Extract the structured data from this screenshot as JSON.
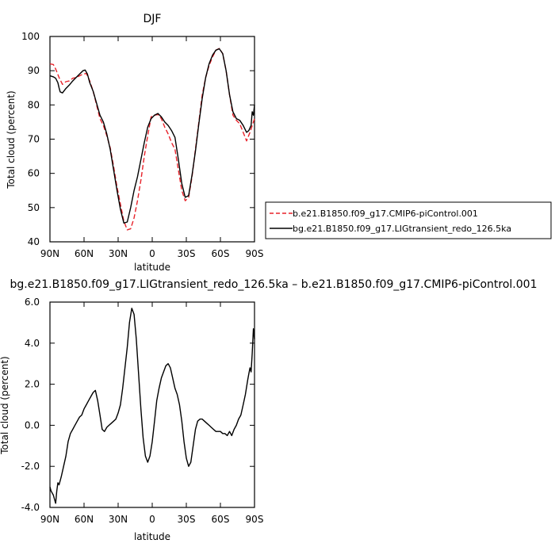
{
  "chart_data": [
    {
      "type": "line",
      "title": "DJF",
      "xlabel": "latitude",
      "ylabel": "Total cloud (percent)",
      "xlim": [
        90,
        -90
      ],
      "ylim": [
        40,
        100
      ],
      "x_ticks": [
        {
          "value": 90,
          "label": "90N"
        },
        {
          "value": 60,
          "label": "60N"
        },
        {
          "value": 30,
          "label": "30N"
        },
        {
          "value": 0,
          "label": "0"
        },
        {
          "value": -30,
          "label": "30S"
        },
        {
          "value": -60,
          "label": "60S"
        },
        {
          "value": -90,
          "label": "90S"
        }
      ],
      "y_ticks": [
        {
          "value": 40,
          "label": "40"
        },
        {
          "value": 50,
          "label": "50"
        },
        {
          "value": 60,
          "label": "60"
        },
        {
          "value": 70,
          "label": "70"
        },
        {
          "value": 80,
          "label": "80"
        },
        {
          "value": 90,
          "label": "90"
        },
        {
          "value": 100,
          "label": "100"
        }
      ],
      "legend": "right",
      "series": [
        {
          "name": "b.e21.B1850.f09_g17.CMIP6-piControl.001",
          "color": "#e8222a",
          "dash": "dashed",
          "x": [
            90,
            87,
            85,
            82,
            79,
            76,
            73,
            70,
            67,
            64,
            61,
            58,
            55,
            52,
            49,
            46,
            43,
            40,
            37,
            34,
            31,
            28,
            25,
            22,
            19,
            16,
            13,
            10,
            7,
            4,
            1,
            -2,
            -5,
            -8,
            -11,
            -14,
            -17,
            -20,
            -23,
            -26,
            -29,
            -32,
            -35,
            -38,
            -41,
            -44,
            -47,
            -50,
            -53,
            -56,
            -59,
            -62,
            -65,
            -68,
            -71,
            -74,
            -77,
            -80,
            -83,
            -86,
            -89,
            -90
          ],
          "y": [
            92,
            91.8,
            90.5,
            88,
            86,
            86.8,
            87,
            87.8,
            88,
            88.5,
            89,
            89.2,
            87,
            84,
            80,
            76,
            74,
            71,
            67.5,
            62,
            56,
            51,
            46,
            43.5,
            43.8,
            47,
            52,
            58,
            65,
            71,
            76.5,
            77,
            77.2,
            76,
            73.5,
            71.5,
            69,
            67,
            61,
            55,
            52,
            53,
            59,
            67,
            75,
            83,
            88,
            91.5,
            94,
            96,
            96.5,
            95,
            90,
            83,
            77,
            75.5,
            74.5,
            72,
            69.5,
            72,
            75,
            76
          ]
        },
        {
          "name": "bg.e21.B1850.f09_g17.LIGtransient_redo_126.5ka",
          "color": "#000000",
          "dash": "solid",
          "x": [
            90,
            87,
            85,
            83,
            82,
            81,
            79,
            76,
            73,
            70,
            67,
            64,
            61,
            59,
            57,
            55,
            52,
            49,
            46,
            43,
            40,
            37,
            34,
            31,
            28,
            25,
            22,
            19,
            16,
            13,
            10,
            7,
            4,
            1,
            -2,
            -5,
            -8,
            -11,
            -14,
            -17,
            -20,
            -23,
            -26,
            -29,
            -32,
            -35,
            -38,
            -41,
            -44,
            -47,
            -50,
            -53,
            -56,
            -59,
            -62,
            -65,
            -68,
            -71,
            -74,
            -77,
            -80,
            -83,
            -85,
            -87,
            -88,
            -89,
            -90
          ],
          "y": [
            88.5,
            88.2,
            87.8,
            86.5,
            85,
            83.8,
            83.5,
            84.8,
            85.8,
            87,
            88,
            89,
            90,
            90.2,
            89,
            86.5,
            84,
            80.5,
            77,
            75,
            71.5,
            67,
            61,
            55,
            49.5,
            45.5,
            45.8,
            50,
            55,
            59,
            64,
            69,
            73.5,
            76,
            77,
            77.5,
            76.5,
            75,
            74,
            72.5,
            70.5,
            64,
            57,
            53,
            53.5,
            59.5,
            66.5,
            74.5,
            82,
            88,
            92,
            94.5,
            96,
            96.4,
            95,
            90,
            83,
            78,
            76,
            75.5,
            74,
            72,
            72.5,
            74,
            78,
            77,
            80
          ]
        }
      ]
    },
    {
      "type": "line",
      "title": "bg.e21.B1850.f09_g17.LIGtransient_redo_126.5ka – b.e21.B1850.f09_g17.CMIP6-piControl.001",
      "xlabel": "latitude",
      "ylabel": "Total cloud (percent)",
      "xlim": [
        90,
        -90
      ],
      "ylim": [
        -4,
        6
      ],
      "x_ticks": [
        {
          "value": 90,
          "label": "90N"
        },
        {
          "value": 60,
          "label": "60N"
        },
        {
          "value": 30,
          "label": "30N"
        },
        {
          "value": 0,
          "label": "0"
        },
        {
          "value": -30,
          "label": "30S"
        },
        {
          "value": -60,
          "label": "60S"
        },
        {
          "value": -90,
          "label": "90S"
        }
      ],
      "y_ticks": [
        {
          "value": -4,
          "label": "-4.0"
        },
        {
          "value": -2,
          "label": "-2.0"
        },
        {
          "value": 0,
          "label": "0.0"
        },
        {
          "value": 2,
          "label": "2.0"
        },
        {
          "value": 4,
          "label": "4.0"
        },
        {
          "value": 6,
          "label": "6.0"
        }
      ],
      "series": [
        {
          "name": "",
          "color": "#000000",
          "dash": "solid",
          "x": [
            90,
            89,
            88,
            87,
            86,
            85,
            84,
            83,
            82,
            81,
            80,
            78,
            76,
            74,
            72,
            70,
            68,
            66,
            64,
            62,
            60,
            58,
            56,
            54,
            52,
            50,
            48,
            46,
            44,
            42,
            40,
            38,
            36,
            34,
            32,
            30,
            28,
            26,
            24,
            22,
            20,
            18,
            16,
            14,
            12,
            10,
            8,
            6,
            4,
            2,
            0,
            -2,
            -4,
            -6,
            -8,
            -10,
            -12,
            -14,
            -16,
            -18,
            -20,
            -22,
            -24,
            -26,
            -28,
            -30,
            -32,
            -34,
            -36,
            -38,
            -40,
            -42,
            -44,
            -46,
            -48,
            -50,
            -52,
            -54,
            -56,
            -58,
            -60,
            -62,
            -64,
            -66,
            -68,
            -70,
            -72,
            -74,
            -76,
            -78,
            -80,
            -82,
            -84,
            -85,
            -86,
            -87,
            -88,
            -89,
            -90
          ],
          "y": [
            -3.0,
            -3.2,
            -3.3,
            -3.4,
            -3.6,
            -3.8,
            -3.2,
            -2.8,
            -2.9,
            -2.7,
            -2.5,
            -2.0,
            -1.5,
            -0.8,
            -0.4,
            -0.2,
            0.0,
            0.2,
            0.4,
            0.5,
            0.8,
            1.0,
            1.2,
            1.4,
            1.6,
            1.7,
            1.2,
            0.5,
            -0.2,
            -0.3,
            -0.1,
            0.0,
            0.1,
            0.2,
            0.3,
            0.6,
            1.0,
            1.8,
            2.8,
            3.8,
            5.0,
            5.7,
            5.4,
            4.2,
            2.5,
            0.8,
            -0.6,
            -1.5,
            -1.8,
            -1.5,
            -0.8,
            0.2,
            1.2,
            1.8,
            2.3,
            2.6,
            2.9,
            3.0,
            2.8,
            2.3,
            1.8,
            1.5,
            1.0,
            0.2,
            -0.8,
            -1.6,
            -2.0,
            -1.8,
            -1.0,
            -0.2,
            0.2,
            0.3,
            0.3,
            0.2,
            0.1,
            0.0,
            -0.1,
            -0.2,
            -0.3,
            -0.3,
            -0.3,
            -0.4,
            -0.4,
            -0.5,
            -0.3,
            -0.5,
            -0.2,
            0.0,
            0.3,
            0.5,
            1.0,
            1.5,
            2.2,
            2.5,
            2.8,
            2.6,
            3.5,
            4.7,
            4.2
          ]
        }
      ]
    }
  ]
}
